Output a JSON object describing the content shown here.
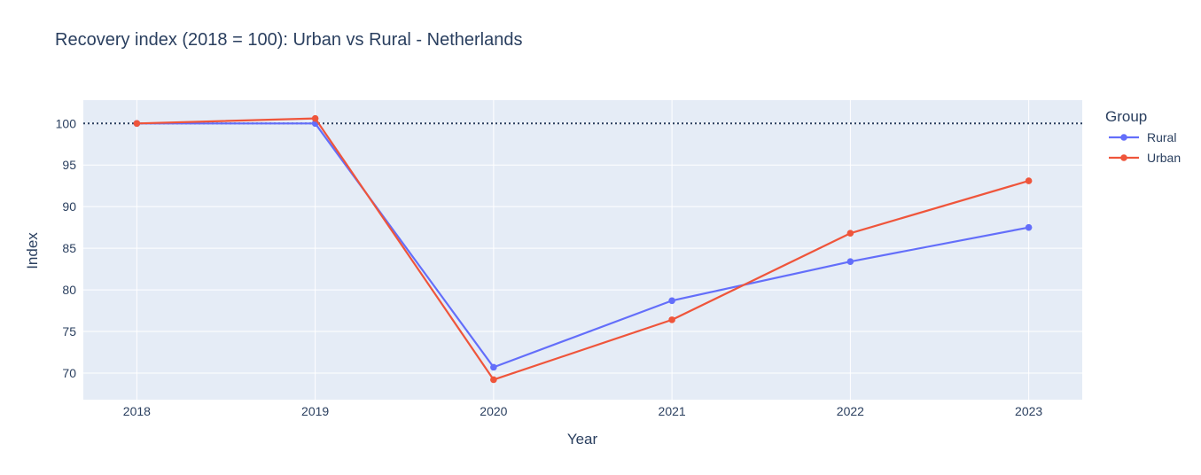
{
  "chart_data": {
    "type": "line",
    "title": "Recovery index (2018 = 100): Urban vs Rural - Netherlands",
    "xlabel": "Year",
    "ylabel": "Index",
    "x": [
      "2018",
      "2019",
      "2020",
      "2021",
      "2022",
      "2023"
    ],
    "xlim": [
      2017.7,
      2023.3
    ],
    "ylim": [
      66.8,
      102.8
    ],
    "yticks": [
      70,
      75,
      80,
      85,
      90,
      95,
      100
    ],
    "reference_line": {
      "y": 100,
      "style": "dotted"
    },
    "grid": true,
    "legend": {
      "title": "Group",
      "placement": "right"
    },
    "series": [
      {
        "name": "Rural",
        "color": "#636efa",
        "values": [
          100.0,
          100.0,
          70.7,
          78.7,
          83.4,
          87.5
        ]
      },
      {
        "name": "Urban",
        "color": "#ef553b",
        "values": [
          100.0,
          100.6,
          69.2,
          76.4,
          86.8,
          93.1
        ]
      }
    ],
    "colors": {
      "plot_bg": "#e5ecf6",
      "grid": "#ffffff",
      "text": "#2a3f5f",
      "reference": "#2a3f5f"
    }
  }
}
